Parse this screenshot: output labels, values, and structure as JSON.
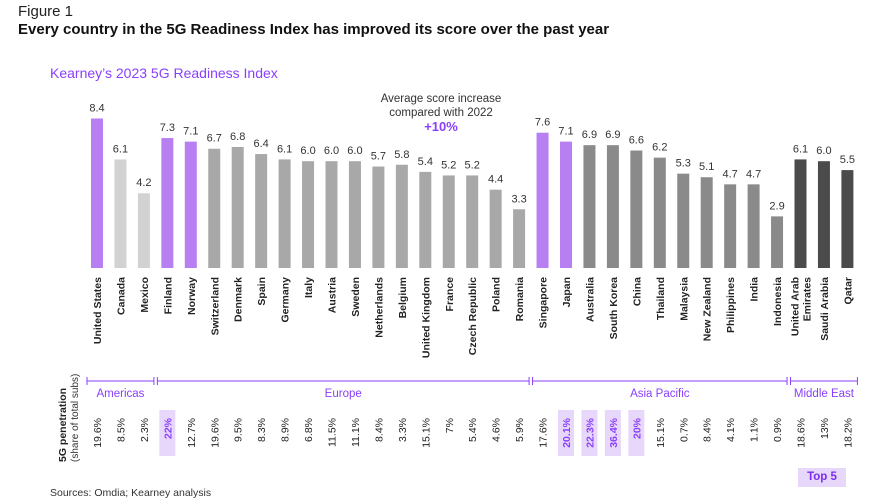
{
  "figure_label": "Figure 1",
  "headline": "Every country in the 5G Readiness Index has improved its score over the past year",
  "subtitle": "Kearney’s 2023 5G Readiness Index",
  "callout": {
    "line1": "Average score increase",
    "line2": "compared with 2022",
    "value": "+10%"
  },
  "source": "Sources: Omdia; Kearney analysis",
  "legend_top5": "Top 5",
  "colors": {
    "top5": "#b77ff2",
    "americas_other": "#d2d2d2",
    "europe": "#a8a8a8",
    "asia": "#8a8a8a",
    "middle_east": "#4b4b4b",
    "accent": "#8a3ffc",
    "highlight_bg": "#e6d7fb"
  },
  "chart_data": {
    "type": "bar",
    "title": "Kearney’s 2023 5G Readiness Index",
    "ylim": [
      0,
      9
    ],
    "secondary_label": "5G penetration (share of total subs)",
    "categories": [
      "United States",
      "Canada",
      "Mexico",
      "Finland",
      "Norway",
      "Switzerland",
      "Denmark",
      "Spain",
      "Germany",
      "Italy",
      "Austria",
      "Sweden",
      "Netherlands",
      "Belgium",
      "United Kingdom",
      "France",
      "Czech Republic",
      "Poland",
      "Romania",
      "Singapore",
      "Japan",
      "Australia",
      "South Korea",
      "China",
      "Thailand",
      "Malaysia",
      "New Zealand",
      "Philippines",
      "India",
      "Indonesia",
      "United Arab Emirates",
      "Saudi Arabia",
      "Qatar"
    ],
    "category_display": [
      "United States",
      "Canada",
      "Mexico",
      "Finland",
      "Norway",
      "Switzerland",
      "Denmark",
      "Spain",
      "Germany",
      "Italy",
      "Austria",
      "Sweden",
      "Netherlands",
      "Belgium",
      "United Kingdom",
      "France",
      "Czech Republic",
      "Poland",
      "Romania",
      "Singapore",
      "Japan",
      "Australia",
      "South Korea",
      "China",
      "Thailand",
      "Malaysia",
      "New Zealand",
      "Philippines",
      "India",
      "Indonesia",
      "United Arab|Emirates",
      "Saudi Arabia",
      "Qatar"
    ],
    "values": [
      8.4,
      6.1,
      4.2,
      7.3,
      7.1,
      6.7,
      6.8,
      6.4,
      6.1,
      6.0,
      6.0,
      6.0,
      5.7,
      5.8,
      5.4,
      5.2,
      5.2,
      4.4,
      3.3,
      7.6,
      7.1,
      6.9,
      6.9,
      6.6,
      6.2,
      5.3,
      5.1,
      4.7,
      4.7,
      2.9,
      6.1,
      6.0,
      5.5
    ],
    "value_labels": [
      "8.4",
      "6.1",
      "4.2",
      "7.3",
      "7.1",
      "6.7",
      "6.8",
      "6.4",
      "6.1",
      "6.0",
      "6.0",
      "6.0",
      "5.7",
      "5.8",
      "5.4",
      "5.2",
      "5.2",
      "4.4",
      "3.3",
      "7.6",
      "7.1",
      "6.9",
      "6.9",
      "6.6",
      "6.2",
      "5.3",
      "5.1",
      "4.7",
      "4.7",
      "2.9",
      "6.1",
      "6.0",
      "5.5"
    ],
    "top5": [
      true,
      false,
      false,
      true,
      true,
      false,
      false,
      false,
      false,
      false,
      false,
      false,
      false,
      false,
      false,
      false,
      false,
      false,
      false,
      true,
      true,
      false,
      false,
      false,
      false,
      false,
      false,
      false,
      false,
      false,
      false,
      false,
      false
    ],
    "regions": [
      {
        "name": "Americas",
        "start": 0,
        "end": 2,
        "color_key": "americas_other"
      },
      {
        "name": "Europe",
        "start": 3,
        "end": 18,
        "color_key": "europe"
      },
      {
        "name": "Asia Pacific",
        "start": 19,
        "end": 29,
        "color_key": "asia"
      },
      {
        "name": "Middle East",
        "start": 30,
        "end": 32,
        "color_key": "middle_east"
      }
    ],
    "penetration": [
      "19.6%",
      "8.5%",
      "2.3%",
      "22%",
      "12.7%",
      "19.6%",
      "9.5%",
      "8.3%",
      "8.9%",
      "6.8%",
      "11.5%",
      "11.1%",
      "8.4%",
      "3.3%",
      "15.1%",
      "7%",
      "5.4%",
      "4.6%",
      "5.9%",
      "17.6%",
      "20.1%",
      "22.3%",
      "36.4%",
      "20%",
      "15.1%",
      "0.7%",
      "8.4%",
      "4.1%",
      "1.1%",
      "0.9%",
      "18.6%",
      "13%",
      "18.2%"
    ],
    "penetration_top5": [
      false,
      false,
      false,
      true,
      false,
      false,
      false,
      false,
      false,
      false,
      false,
      false,
      false,
      false,
      false,
      false,
      false,
      false,
      false,
      false,
      true,
      true,
      true,
      true,
      false,
      false,
      false,
      false,
      false,
      false,
      false,
      false,
      false
    ]
  }
}
